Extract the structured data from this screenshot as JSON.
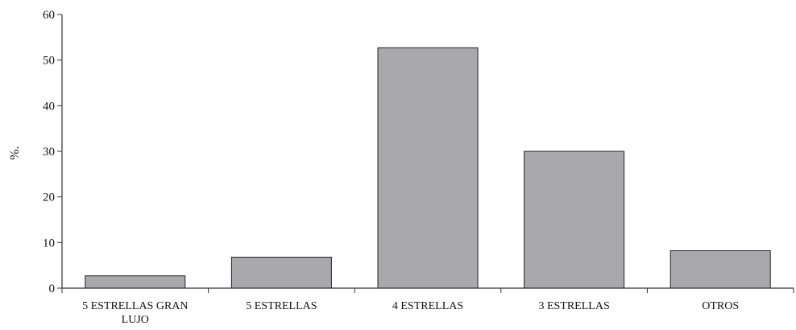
{
  "chart_data": {
    "type": "bar",
    "title": "",
    "xlabel": "",
    "ylabel": "%.",
    "ylim": [
      0,
      60
    ],
    "yticks": [
      0,
      10,
      20,
      30,
      40,
      50,
      60
    ],
    "categories": [
      [
        "5 ESTRELLAS GRAN",
        "LUJO"
      ],
      [
        "5 ESTRELLAS"
      ],
      [
        "4 ESTRELLAS"
      ],
      [
        "3 ESTRELLAS"
      ],
      [
        "OTROS"
      ]
    ],
    "values": [
      2.7,
      6.8,
      52.7,
      30.0,
      8.2
    ],
    "grid": false,
    "bar_color": "#a9a9ad",
    "bar_edge_color": "#222222",
    "axis_color": "#333333"
  }
}
